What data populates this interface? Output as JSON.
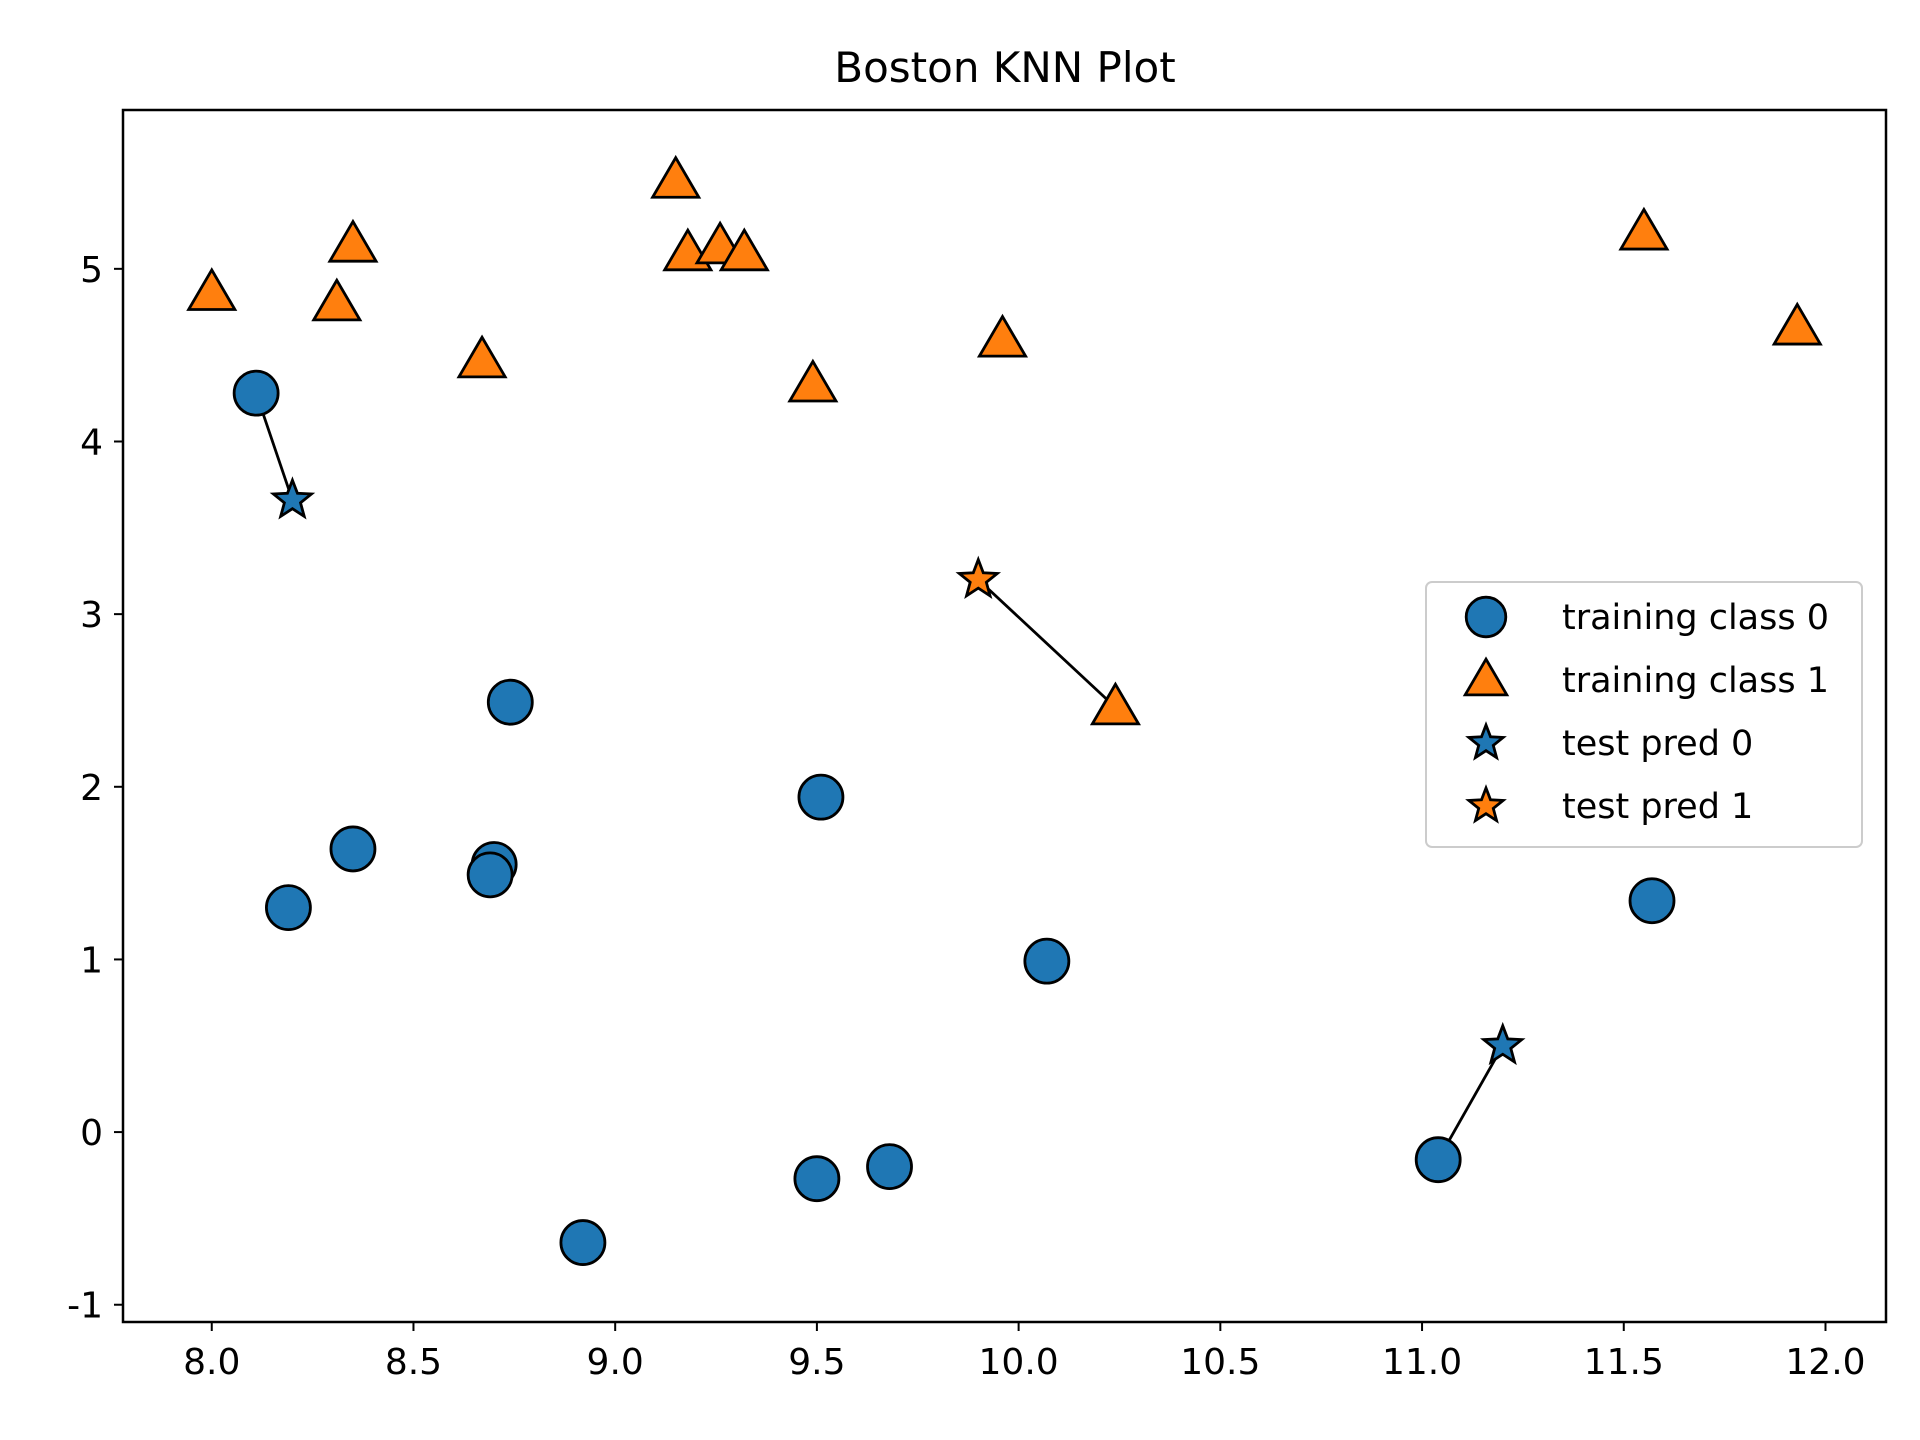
{
  "chart_data": {
    "type": "scatter",
    "title": "Boston KNN Plot",
    "xlabel": "",
    "ylabel": "",
    "xlim": [
      7.78,
      12.15
    ],
    "ylim": [
      -1.1,
      5.92
    ],
    "x_ticks": [
      8.0,
      8.5,
      9.0,
      9.5,
      10.0,
      10.5,
      11.0,
      11.5,
      12.0
    ],
    "x_tick_labels": [
      "8.0",
      "8.5",
      "9.0",
      "9.5",
      "10.0",
      "10.5",
      "11.0",
      "11.5",
      "12.0"
    ],
    "y_ticks": [
      -1,
      0,
      1,
      2,
      3,
      4,
      5
    ],
    "y_tick_labels": [
      "-1",
      "0",
      "1",
      "2",
      "3",
      "4",
      "5"
    ],
    "grid": false,
    "legend_position": "center-right",
    "series": [
      {
        "name": "training class 0",
        "marker": "circle",
        "color": "#1f77b4",
        "points": [
          [
            8.11,
            4.28
          ],
          [
            8.19,
            1.3
          ],
          [
            8.35,
            1.64
          ],
          [
            8.7,
            1.55
          ],
          [
            8.69,
            1.49
          ],
          [
            8.74,
            2.49
          ],
          [
            8.92,
            -0.64
          ],
          [
            9.5,
            -0.27
          ],
          [
            9.51,
            1.94
          ],
          [
            9.68,
            -0.2
          ],
          [
            10.07,
            0.99
          ],
          [
            11.04,
            -0.16
          ],
          [
            11.57,
            1.34
          ]
        ]
      },
      {
        "name": "training class 1",
        "marker": "triangle",
        "color": "#ff7f0e",
        "points": [
          [
            8.0,
            4.86
          ],
          [
            8.31,
            4.8
          ],
          [
            8.35,
            5.14
          ],
          [
            8.67,
            4.47
          ],
          [
            9.15,
            5.51
          ],
          [
            9.18,
            5.09
          ],
          [
            9.26,
            5.13
          ],
          [
            9.32,
            5.09
          ],
          [
            9.49,
            4.33
          ],
          [
            9.96,
            4.59
          ],
          [
            10.24,
            2.46
          ],
          [
            11.55,
            5.21
          ],
          [
            11.93,
            4.66
          ]
        ]
      },
      {
        "name": "test pred 0",
        "marker": "star",
        "color": "#1f77b4",
        "points": [
          [
            8.2,
            3.66
          ],
          [
            11.2,
            0.5
          ]
        ]
      },
      {
        "name": "test pred 1",
        "marker": "star",
        "color": "#ff7f0e",
        "points": [
          [
            9.9,
            3.2
          ]
        ]
      }
    ],
    "neighbor_lines": [
      [
        [
          8.2,
          3.66
        ],
        [
          8.11,
          4.28
        ]
      ],
      [
        [
          9.9,
          3.2
        ],
        [
          10.24,
          2.46
        ]
      ],
      [
        [
          11.2,
          0.5
        ],
        [
          11.04,
          -0.16
        ]
      ]
    ]
  }
}
